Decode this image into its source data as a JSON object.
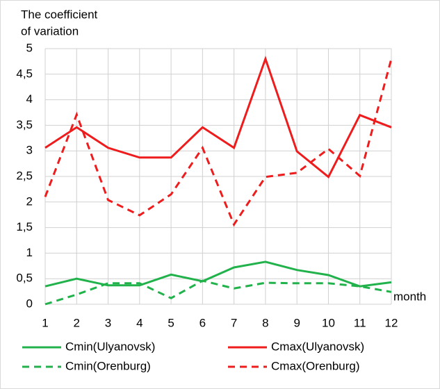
{
  "chart_data": {
    "type": "line",
    "y_label": [
      "The coefficient",
      "of variation"
    ],
    "x_label": "month",
    "categories": [
      "1",
      "2",
      "3",
      "4",
      "5",
      "6",
      "7",
      "8",
      "9",
      "10",
      "11",
      "12"
    ],
    "ylim": [
      0,
      5
    ],
    "yticks": [
      0,
      {
        "value": 0.5,
        "label": "0,5"
      },
      1,
      {
        "value": 1.5,
        "label": "1,5"
      },
      2,
      {
        "value": 2.5,
        "label": "2,5"
      },
      3,
      {
        "value": 3.5,
        "label": "3,5"
      },
      4,
      {
        "value": 4.5,
        "label": "4,5"
      },
      5
    ],
    "grid": true,
    "series": [
      {
        "name": "Cmin(Ulyanovsk)",
        "color": "#21b24b",
        "dashed": false,
        "values": [
          0.35,
          0.5,
          0.37,
          0.37,
          0.58,
          0.45,
          0.72,
          0.83,
          0.67,
          0.57,
          0.35,
          0.43
        ]
      },
      {
        "name": "Cmax(Ulyanovsk)",
        "color": "#ee1c1c",
        "dashed": false,
        "values": [
          3.06,
          3.46,
          3.06,
          2.87,
          2.87,
          3.46,
          3.06,
          4.8,
          2.99,
          2.49,
          3.7,
          3.46
        ]
      },
      {
        "name": "Cmin(Orenburg)",
        "color": "#21b24b",
        "dashed": true,
        "values": [
          0,
          0.19,
          0.41,
          0.41,
          0.12,
          0.46,
          0.31,
          0.42,
          0.41,
          0.41,
          0.35,
          0.24
        ]
      },
      {
        "name": "Cmax(Orenburg)",
        "color": "#ee1c1c",
        "dashed": true,
        "values": [
          2.1,
          3.71,
          2.04,
          1.74,
          2.15,
          3.06,
          1.56,
          2.49,
          2.57,
          3.04,
          2.51,
          4.8
        ]
      }
    ]
  }
}
